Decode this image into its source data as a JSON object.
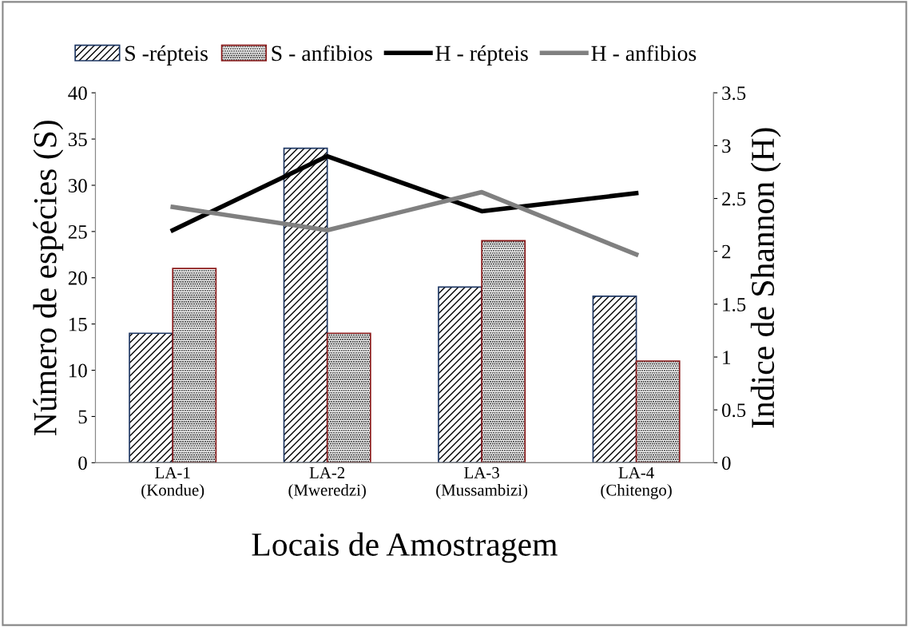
{
  "chart_data": {
    "type": "bar",
    "xlabel": "Locais de Amostragem",
    "ylabel": "Número de espécies (S)",
    "y2label": "Indice de Shannon (H)",
    "categories": [
      "LA-1\n(Kondue)",
      "LA-2\n(Mweredzi)",
      "LA-3\n(Mussambizi)",
      "LA-4\n(Chitengo)"
    ],
    "series": [
      {
        "name": "S -répteis",
        "color": "#1f3864",
        "values": [
          14,
          34,
          19,
          18
        ]
      },
      {
        "name": "S - anfibios",
        "color": "#8b1a1a",
        "values": [
          21,
          14,
          24,
          11
        ]
      },
      {
        "name": "H - répteis",
        "type": "line",
        "axis": "y2",
        "color": "#000000",
        "values": [
          2.2,
          2.9,
          2.38,
          2.55
        ]
      },
      {
        "name": "H - anfibios",
        "type": "line",
        "axis": "y2",
        "color": "#808080",
        "values": [
          2.42,
          2.2,
          2.56,
          1.97
        ]
      }
    ],
    "ylim": [
      0,
      40
    ],
    "yticks": [
      0,
      5,
      10,
      15,
      20,
      25,
      30,
      35,
      40
    ],
    "y2lim": [
      0,
      3.5
    ],
    "y2ticks": [
      0,
      0.5,
      1,
      1.5,
      2,
      2.5,
      3,
      3.5
    ],
    "grid": false,
    "legend": "top",
    "marker": "none",
    "line_style": "solid"
  }
}
